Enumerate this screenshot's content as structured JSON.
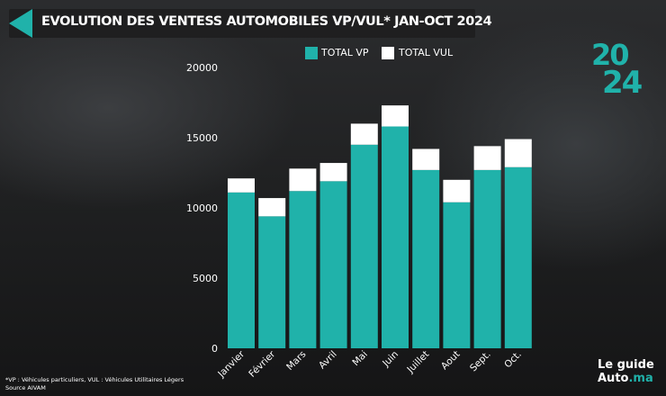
{
  "header": {
    "title": "EVOLUTION DES VENTESS  AUTOMOBILES VP/VUL*  JAN-OCT 2024"
  },
  "badge": {
    "line1": "20",
    "line2": "24"
  },
  "brand": {
    "line1": "Le guide",
    "line2_main": "Auto",
    "line2_accent": ".ma"
  },
  "footnote": {
    "line1": "*VP : Véhicules particuliers, VUL : Véhicules Utilitaires Légers",
    "line2": "Source AIVAM"
  },
  "colors": {
    "vp": "#20b2aa",
    "vul": "#ffffff",
    "accent": "#20b2aa"
  },
  "chart_data": {
    "type": "bar",
    "stacked": true,
    "categories": [
      "Janvier",
      "Février",
      "Mars",
      "Avril",
      "Mai",
      "Juin",
      "Juillet",
      "Aout",
      "Sept.",
      "Oct."
    ],
    "series": [
      {
        "name": "TOTAL VP",
        "values": [
          11100,
          9400,
          11200,
          11900,
          14500,
          15800,
          12700,
          10400,
          12700,
          12900
        ]
      },
      {
        "name": "TOTAL VUL",
        "values": [
          1000,
          1300,
          1600,
          1300,
          1500,
          1500,
          1500,
          1600,
          1700,
          2000
        ]
      }
    ],
    "ylim": [
      0,
      20000
    ],
    "yticks": [
      "20000",
      "15000",
      "10000",
      "5000",
      "0"
    ],
    "ytick_values": [
      20000,
      15000,
      10000,
      5000,
      0
    ],
    "legend": "top",
    "grid": false,
    "xlabel": "",
    "ylabel": ""
  }
}
